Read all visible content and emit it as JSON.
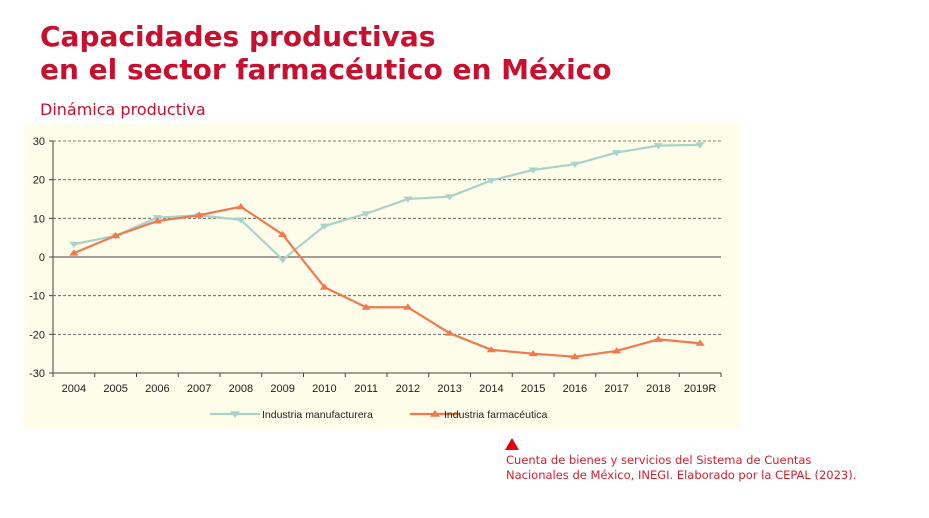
{
  "header": {
    "title_line1": "Capacidades productivas",
    "title_line2": "en el sector farmacéutico en México",
    "subtitle": "Dinámica productiva"
  },
  "source": {
    "line1": "Cuenta de bienes y servicios del Sistema de Cuentas",
    "line2": "Nacionales de México, INEGI. Elaborado por la CEPAL (2023)."
  },
  "colors": {
    "title": "#c8102e",
    "chart_background": "#fdfdea",
    "manufacturera": "#a9d3c8",
    "farmaceutica": "#f07a50"
  },
  "chart_data": {
    "type": "line",
    "categories": [
      "2004",
      "2005",
      "2006",
      "2007",
      "2008",
      "2009",
      "2010",
      "2011",
      "2012",
      "2013",
      "2014",
      "2015",
      "2016",
      "2017",
      "2018",
      "2019R"
    ],
    "series": [
      {
        "name": "Industria manufacturera",
        "marker": "triangle-down",
        "values": [
          3.3,
          5.5,
          10.2,
          10.8,
          9.6,
          -0.7,
          8.0,
          11.2,
          15.0,
          15.6,
          19.8,
          22.5,
          24.0,
          27.0,
          28.8,
          29.0
        ]
      },
      {
        "name": "Industria farmacéutica",
        "marker": "triangle-up",
        "values": [
          1.0,
          5.5,
          9.3,
          10.8,
          13.0,
          5.8,
          -7.8,
          -13.0,
          -13.0,
          -19.7,
          -24.0,
          -25.0,
          -25.8,
          -24.3,
          -21.3,
          -22.3
        ]
      }
    ],
    "y_ticks": [
      "30",
      "20",
      "10",
      "0",
      "-10",
      "-20",
      "-30"
    ],
    "ylim": [
      -30,
      30
    ],
    "grid": "horizontal-dashed",
    "legend_position": "bottom"
  }
}
